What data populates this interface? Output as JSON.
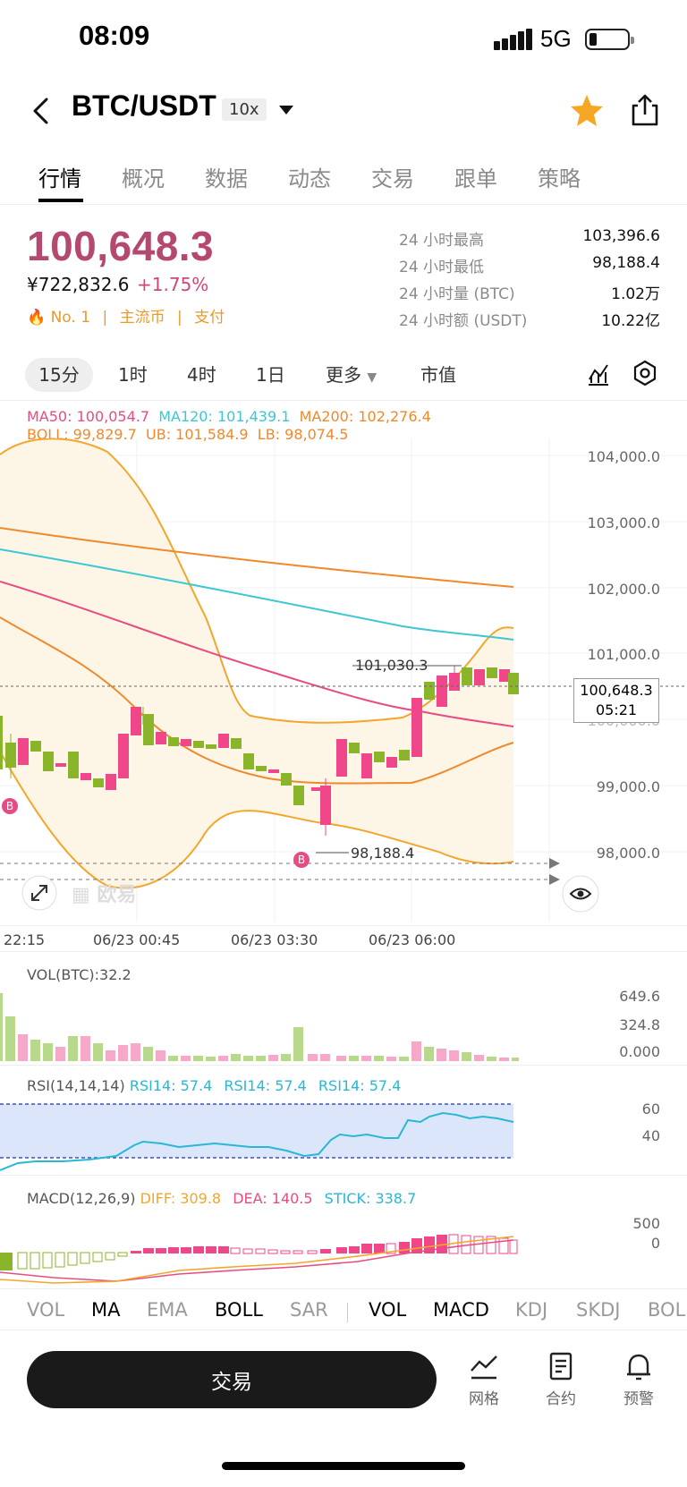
{
  "status_bar": {
    "time": "08:09",
    "network": "5G"
  },
  "header": {
    "pair": "BTC/USDT",
    "leverage": "10x"
  },
  "tabs": [
    "行情",
    "概况",
    "数据",
    "动态",
    "交易",
    "跟单",
    "策略"
  ],
  "ticker": {
    "last_price": "100,648.3",
    "cny_price": "¥722,832.6",
    "change_pct": "+1.75%",
    "rank": "No. 1",
    "tag_main": "主流币",
    "tag_pay": "支付",
    "stats": [
      {
        "label": "24 小时最高",
        "value": "103,396.6"
      },
      {
        "label": "24 小时最低",
        "value": "98,188.4"
      },
      {
        "label": "24 小时量 (BTC)",
        "value": "1.02万"
      },
      {
        "label": "24 小时额 (USDT)",
        "value": "10.22亿"
      }
    ]
  },
  "periods": [
    "15分",
    "1时",
    "4时",
    "1日",
    "更多",
    "市值"
  ],
  "indicators": {
    "ma50": "MA50: 100,054.7",
    "ma120": "MA120: 101,439.1",
    "ma200": "MA200: 102,276.4",
    "boll": "BOLL: 99,829.7",
    "ub": "UB: 101,584.9",
    "lb": "LB: 98,074.5"
  },
  "main_chart": {
    "y_ticks": [
      "104,000.0",
      "103,000.0",
      "102,000.0",
      "101,000.0",
      "100,000.0",
      "99,000.0",
      "98,000.0"
    ],
    "x_ticks": [
      "22:15",
      "06/23 00:45",
      "06/23 03:30",
      "06/23 06:00"
    ],
    "high_label": "101,030.3",
    "low_label": "98,188.4",
    "current_price": "100,648.3",
    "countdown": "05:21",
    "marker": "B",
    "watermark": "欧易"
  },
  "vol_panel": {
    "label": "VOL(BTC):32.2",
    "ticks": [
      "649.6",
      "324.8",
      "0.000"
    ]
  },
  "rsi_panel": {
    "label": "RSI(14,14,14)",
    "values": [
      "RSI14: 57.4",
      "RSI14: 57.4",
      "RSI14: 57.4"
    ],
    "ticks": [
      "60",
      "40"
    ]
  },
  "macd_panel": {
    "label": "MACD(12,26,9)",
    "diff": "DIFF: 309.8",
    "dea": "DEA: 140.5",
    "stick": "STICK: 338.7",
    "ticks": [
      "500",
      "0"
    ]
  },
  "indicator_tabs": {
    "main": [
      "VOL",
      "MA",
      "EMA",
      "BOLL",
      "SAR"
    ],
    "sub": [
      "VOL",
      "MACD",
      "KDJ",
      "SKDJ",
      "BOL"
    ]
  },
  "actions": {
    "trade": "交易",
    "grid": "网格",
    "contract": "合约",
    "alert": "预警"
  },
  "colors": {
    "up": "#f0468a",
    "down": "#8ab52a",
    "price": "#b5486f",
    "accent": "#f5a623",
    "ma50": "#e84c82",
    "ma120": "#3cc6d6",
    "ma200": "#f0892c",
    "boll": "#f3a62b"
  }
}
